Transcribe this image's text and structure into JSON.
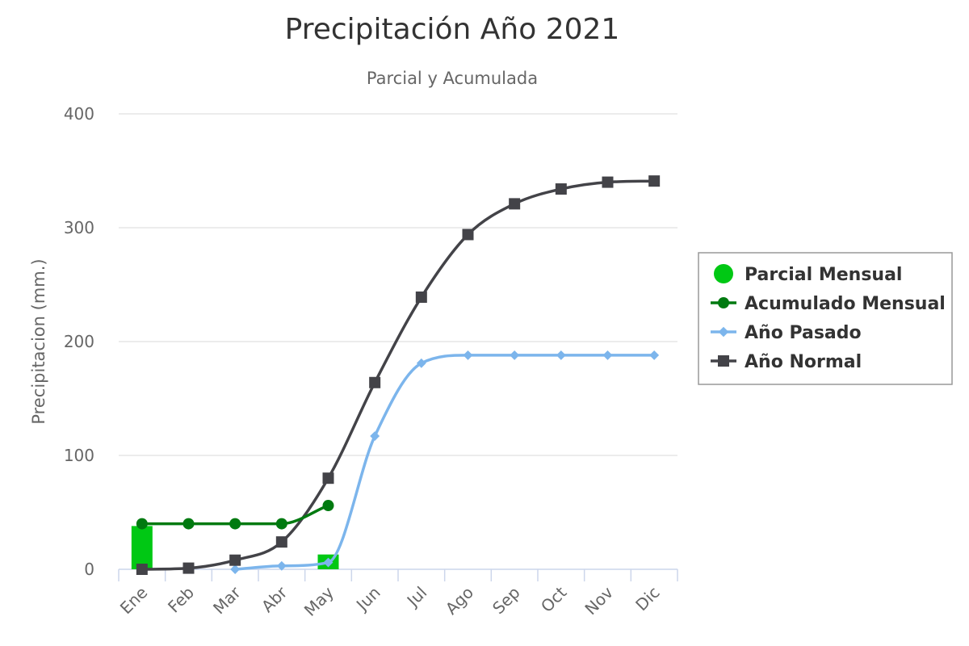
{
  "chart_data": {
    "type": "line",
    "title": "Precipitación Año 2021",
    "subtitle": "Parcial y Acumulada",
    "ylabel": "Precipitacion (mm.)",
    "xlabel": "",
    "ylim": [
      0,
      400
    ],
    "yticks": [
      0,
      100,
      200,
      300,
      400
    ],
    "grid": true,
    "legend_position": "right",
    "categories": [
      "Ene",
      "Feb",
      "Mar",
      "Abr",
      "May",
      "Jun",
      "Jul",
      "Ago",
      "Sep",
      "Oct",
      "Nov",
      "Dic"
    ],
    "series": [
      {
        "name": "Parcial Mensual",
        "type": "bar",
        "color": "#00c814",
        "marker": "circle",
        "values": [
          38,
          0,
          0,
          0,
          13,
          null,
          null,
          null,
          null,
          null,
          null,
          null
        ]
      },
      {
        "name": "Acumulado Mensual",
        "type": "line",
        "color": "#007a10",
        "marker": "circle",
        "values": [
          40,
          40,
          40,
          40,
          56,
          null,
          null,
          null,
          null,
          null,
          null,
          null
        ]
      },
      {
        "name": "Año Pasado",
        "type": "line",
        "color": "#7cb5ec",
        "marker": "diamond",
        "values": [
          null,
          null,
          0,
          3,
          6,
          117,
          181,
          188,
          188,
          188,
          188,
          188
        ]
      },
      {
        "name": "Año Normal",
        "type": "line",
        "color": "#434348",
        "marker": "square",
        "values": [
          0,
          1,
          8,
          24,
          80,
          164,
          239,
          294,
          321,
          334,
          340,
          341
        ]
      }
    ]
  }
}
